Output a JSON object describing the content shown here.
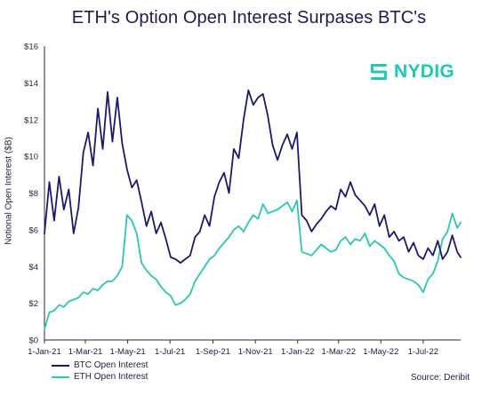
{
  "title": "ETH's Option Open Interest Surpases BTC's",
  "logo": {
    "text": "NYDIG",
    "icon": "nydig-logo-icon",
    "color": "#1ccbb2"
  },
  "source": "Source: Deribit",
  "colors": {
    "btc": "#1b1a6e",
    "eth": "#2cc7b0"
  },
  "chart_data": {
    "type": "line",
    "title": "ETH's Option Open Interest Surpases BTC's",
    "ylabel": "Notional Open Interest ($B)",
    "xlabel": "",
    "ylim": [
      0,
      16
    ],
    "xlim": [
      "2021-01-01",
      "2022-08-24"
    ],
    "y_ticks": [
      "$0",
      "$2",
      "$4",
      "$6",
      "$8",
      "$10",
      "$12",
      "$14",
      "$16"
    ],
    "x_ticks": [
      "1-Jan-21",
      "1-Mar-21",
      "1-May-21",
      "1-Jul-21",
      "1-Sep-21",
      "1-Nov-21",
      "1-Jan-22",
      "1-Mar-22",
      "1-May-22",
      "1-Jul-22"
    ],
    "x_tick_dates": [
      "2021-01-01",
      "2021-03-01",
      "2021-05-01",
      "2021-07-01",
      "2021-09-01",
      "2021-11-01",
      "2022-01-01",
      "2022-03-01",
      "2022-05-01",
      "2022-07-01"
    ],
    "grid": false,
    "legend": "bottom-left",
    "series": [
      {
        "name": "BTC Open Interest",
        "x": [
          "2021-01-01",
          "2021-01-08",
          "2021-01-15",
          "2021-01-22",
          "2021-01-29",
          "2021-02-05",
          "2021-02-12",
          "2021-02-19",
          "2021-02-26",
          "2021-03-05",
          "2021-03-12",
          "2021-03-19",
          "2021-03-26",
          "2021-04-02",
          "2021-04-09",
          "2021-04-16",
          "2021-04-23",
          "2021-04-30",
          "2021-05-07",
          "2021-05-14",
          "2021-05-21",
          "2021-05-28",
          "2021-06-04",
          "2021-06-11",
          "2021-06-18",
          "2021-06-25",
          "2021-07-02",
          "2021-07-09",
          "2021-07-16",
          "2021-07-23",
          "2021-07-30",
          "2021-08-06",
          "2021-08-13",
          "2021-08-20",
          "2021-08-27",
          "2021-09-03",
          "2021-09-10",
          "2021-09-17",
          "2021-09-24",
          "2021-10-01",
          "2021-10-08",
          "2021-10-15",
          "2021-10-22",
          "2021-10-29",
          "2021-11-05",
          "2021-11-12",
          "2021-11-19",
          "2021-11-26",
          "2021-12-03",
          "2021-12-10",
          "2021-12-17",
          "2021-12-24",
          "2021-12-31",
          "2022-01-07",
          "2022-01-14",
          "2022-01-21",
          "2022-01-28",
          "2022-02-04",
          "2022-02-11",
          "2022-02-18",
          "2022-02-25",
          "2022-03-04",
          "2022-03-11",
          "2022-03-18",
          "2022-03-25",
          "2022-04-01",
          "2022-04-08",
          "2022-04-15",
          "2022-04-22",
          "2022-04-29",
          "2022-05-06",
          "2022-05-13",
          "2022-05-20",
          "2022-05-27",
          "2022-06-03",
          "2022-06-10",
          "2022-06-17",
          "2022-06-24",
          "2022-07-01",
          "2022-07-08",
          "2022-07-15",
          "2022-07-22",
          "2022-07-29",
          "2022-08-05",
          "2022-08-12",
          "2022-08-19",
          "2022-08-24"
        ],
        "values": [
          5.8,
          8.6,
          6.5,
          8.9,
          7.1,
          8.2,
          5.8,
          7.2,
          10.2,
          11.3,
          9.5,
          12.6,
          10.4,
          13.5,
          10.8,
          13.2,
          10.7,
          9.3,
          8.3,
          8.7,
          7.5,
          6.2,
          7.0,
          5.8,
          6.4,
          5.5,
          4.5,
          4.4,
          4.2,
          4.4,
          4.6,
          5.6,
          5.9,
          6.8,
          6.2,
          7.8,
          8.6,
          9.1,
          8.0,
          10.4,
          9.9,
          12.0,
          13.6,
          12.8,
          13.2,
          13.4,
          12.2,
          10.6,
          9.8,
          10.6,
          11.2,
          10.4,
          11.3,
          6.8,
          6.5,
          5.9,
          6.3,
          6.6,
          7.0,
          7.3,
          7.1,
          8.2,
          7.8,
          8.6,
          7.9,
          7.6,
          7.3,
          6.8,
          7.4,
          6.2,
          6.8,
          5.6,
          5.9,
          5.4,
          5.6,
          4.8,
          5.3,
          4.6,
          4.4,
          5.0,
          4.6,
          5.4,
          4.4,
          4.8,
          5.7,
          4.8,
          4.5
        ]
      },
      {
        "name": "ETH Open Interest",
        "x": [
          "2021-01-01",
          "2021-01-08",
          "2021-01-15",
          "2021-01-22",
          "2021-01-29",
          "2021-02-05",
          "2021-02-12",
          "2021-02-19",
          "2021-02-26",
          "2021-03-05",
          "2021-03-12",
          "2021-03-19",
          "2021-03-26",
          "2021-04-02",
          "2021-04-09",
          "2021-04-16",
          "2021-04-23",
          "2021-04-30",
          "2021-05-07",
          "2021-05-14",
          "2021-05-21",
          "2021-05-28",
          "2021-06-04",
          "2021-06-11",
          "2021-06-18",
          "2021-06-25",
          "2021-07-02",
          "2021-07-09",
          "2021-07-16",
          "2021-07-23",
          "2021-07-30",
          "2021-08-06",
          "2021-08-13",
          "2021-08-20",
          "2021-08-27",
          "2021-09-03",
          "2021-09-10",
          "2021-09-17",
          "2021-09-24",
          "2021-10-01",
          "2021-10-08",
          "2021-10-15",
          "2021-10-22",
          "2021-10-29",
          "2021-11-05",
          "2021-11-12",
          "2021-11-19",
          "2021-11-26",
          "2021-12-03",
          "2021-12-10",
          "2021-12-17",
          "2021-12-24",
          "2021-12-31",
          "2022-01-07",
          "2022-01-14",
          "2022-01-21",
          "2022-01-28",
          "2022-02-04",
          "2022-02-11",
          "2022-02-18",
          "2022-02-25",
          "2022-03-04",
          "2022-03-11",
          "2022-03-18",
          "2022-03-25",
          "2022-04-01",
          "2022-04-08",
          "2022-04-15",
          "2022-04-22",
          "2022-04-29",
          "2022-05-06",
          "2022-05-13",
          "2022-05-20",
          "2022-05-27",
          "2022-06-03",
          "2022-06-10",
          "2022-06-17",
          "2022-06-24",
          "2022-07-01",
          "2022-07-08",
          "2022-07-15",
          "2022-07-22",
          "2022-07-29",
          "2022-08-05",
          "2022-08-12",
          "2022-08-19",
          "2022-08-24"
        ],
        "values": [
          0.6,
          1.5,
          1.6,
          1.9,
          1.8,
          2.1,
          2.2,
          2.3,
          2.6,
          2.5,
          2.8,
          2.7,
          3.0,
          3.2,
          3.2,
          3.5,
          4.0,
          6.8,
          6.5,
          5.8,
          4.2,
          3.8,
          3.5,
          3.3,
          2.9,
          2.6,
          2.4,
          1.9,
          2.0,
          2.2,
          2.5,
          3.2,
          3.6,
          4.0,
          4.4,
          4.6,
          5.0,
          5.3,
          5.6,
          6.0,
          6.2,
          5.9,
          6.4,
          6.8,
          6.6,
          7.4,
          6.9,
          7.0,
          7.1,
          7.3,
          7.5,
          7.0,
          7.6,
          4.8,
          4.7,
          4.6,
          4.9,
          5.2,
          5.0,
          4.8,
          4.9,
          5.4,
          5.6,
          5.2,
          5.5,
          5.4,
          5.8,
          5.1,
          5.4,
          5.2,
          5.0,
          4.6,
          4.3,
          3.6,
          3.4,
          3.3,
          3.2,
          3.0,
          2.6,
          3.3,
          3.6,
          4.3,
          5.5,
          5.9,
          6.9,
          6.1,
          6.4
        ]
      }
    ]
  }
}
